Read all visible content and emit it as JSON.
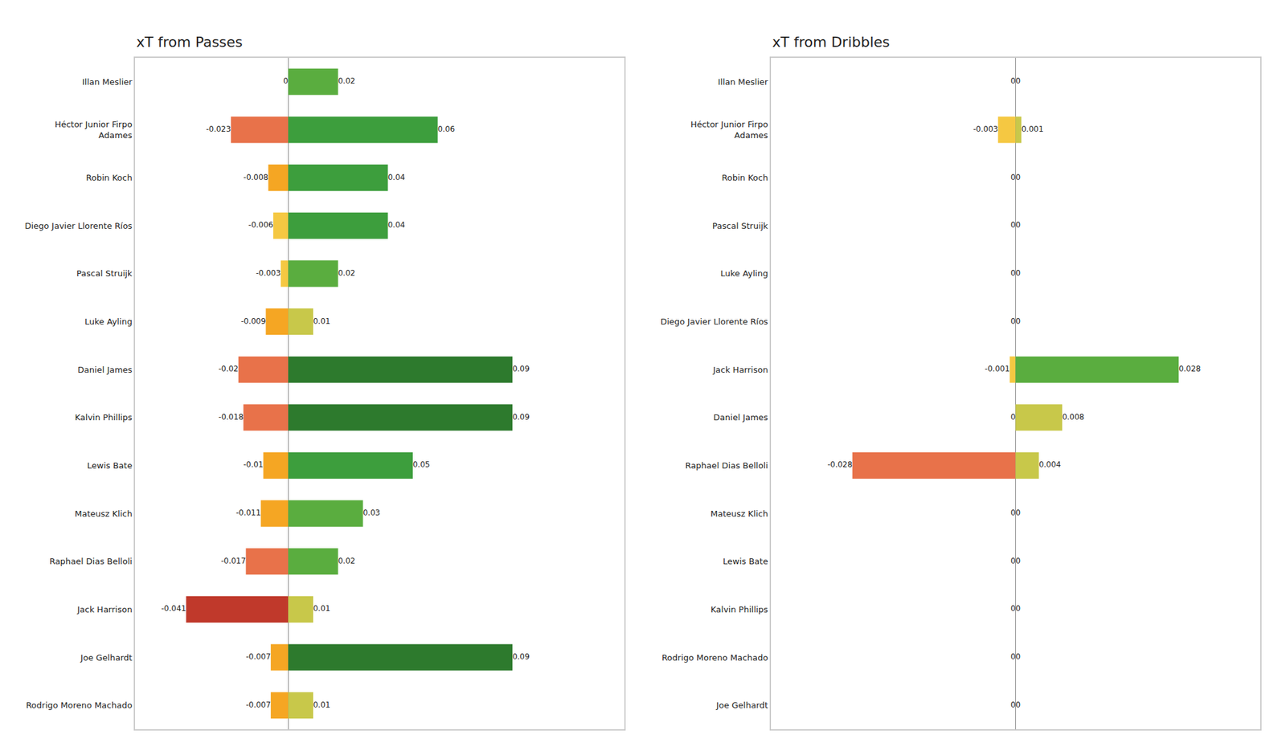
{
  "chart_data": [
    {
      "type": "bar",
      "orientation": "horizontal",
      "title": "xT from Passes",
      "categories": [
        "Illan Meslier",
        "Héctor Junior Firpo\nAdames",
        "Robin Koch",
        "Diego Javier Llorente Ríos",
        "Pascal Struijk",
        "Luke Ayling",
        "Daniel James",
        "Kalvin Phillips",
        "Lewis Bate",
        "Mateusz Klich",
        "Raphael Dias Belloli",
        "Jack Harrison",
        "Joe Gelhardt",
        "Rodrigo Moreno Machado"
      ],
      "series": [
        {
          "values": [
            0,
            -0.023,
            -0.008,
            -0.006,
            -0.003,
            -0.009,
            -0.02,
            -0.018,
            -0.01,
            -0.011,
            -0.017,
            -0.041,
            -0.007,
            -0.007
          ],
          "colors": [
            "#f5c842",
            "#e8724a",
            "#f5a623",
            "#f5c842",
            "#f5c842",
            "#f5a623",
            "#e8724a",
            "#e8724a",
            "#f5a623",
            "#f5a623",
            "#e8724a",
            "#c0392b",
            "#f5a623",
            "#f5a623"
          ]
        },
        {
          "values": [
            0.02,
            0.06,
            0.04,
            0.04,
            0.02,
            0.01,
            0.09,
            0.09,
            0.05,
            0.03,
            0.02,
            0.01,
            0.09,
            0.01
          ],
          "colors": [
            "#5aad3f",
            "#3d9e3d",
            "#3d9e3d",
            "#3d9e3d",
            "#5aad3f",
            "#c8c84a",
            "#2d7a2d",
            "#2d7a2d",
            "#3d9e3d",
            "#5aad3f",
            "#5aad3f",
            "#c8c84a",
            "#2d7a2d",
            "#c8c84a"
          ]
        }
      ],
      "xlim": [
        -0.0615,
        0.135
      ],
      "grid": false,
      "data_labels": true,
      "tick_labels": "y"
    },
    {
      "type": "bar",
      "orientation": "horizontal",
      "title": "xT from Dribbles",
      "categories": [
        "Illan Meslier",
        "Héctor Junior Firpo\nAdames",
        "Robin Koch",
        "Pascal Struijk",
        "Luke Ayling",
        "Diego Javier Llorente Ríos",
        "Jack Harrison",
        "Daniel James",
        "Raphael Dias Belloli",
        "Mateusz Klich",
        "Lewis Bate",
        "Kalvin Phillips",
        "Rodrigo Moreno Machado",
        "Joe Gelhardt"
      ],
      "series": [
        {
          "values": [
            0,
            -0.003,
            0,
            0,
            0,
            0,
            -0.001,
            0,
            -0.028,
            0,
            0,
            0,
            0,
            0
          ],
          "colors": [
            "#f5c842",
            "#f5c842",
            "#f5c842",
            "#f5c842",
            "#f5c842",
            "#f5c842",
            "#f5c842",
            "#f5c842",
            "#e8724a",
            "#f5c842",
            "#f5c842",
            "#f5c842",
            "#f5c842",
            "#f5c842"
          ]
        },
        {
          "values": [
            0,
            0.001,
            0,
            0,
            0,
            0,
            0.028,
            0.008,
            0.004,
            0,
            0,
            0,
            0,
            0
          ],
          "colors": [
            "#c8c84a",
            "#c8c84a",
            "#c8c84a",
            "#c8c84a",
            "#c8c84a",
            "#c8c84a",
            "#5aad3f",
            "#c8c84a",
            "#c8c84a",
            "#c8c84a",
            "#c8c84a",
            "#c8c84a",
            "#c8c84a",
            "#c8c84a"
          ]
        }
      ],
      "xlim": [
        -0.042,
        0.042
      ],
      "grid": false,
      "data_labels": true,
      "tick_labels": "y"
    }
  ]
}
